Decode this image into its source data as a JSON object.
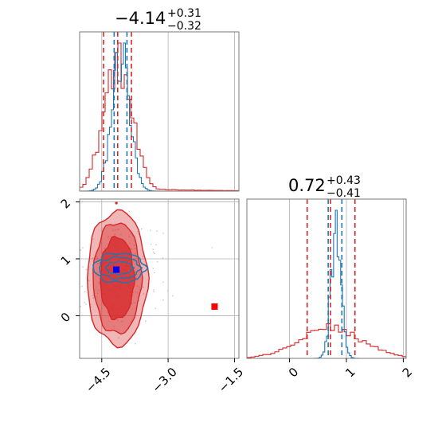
{
  "colors": {
    "red": "#d62728",
    "blue": "#1f77b4",
    "grid": "#b0b0b0",
    "truth_a": "#ff0000",
    "truth_b": "#0000ff"
  },
  "titles": {
    "param1": {
      "median": "−4.14",
      "plus": "+0.31",
      "minus": "−0.32"
    },
    "param2": {
      "median": "0.72",
      "plus": "+0.43",
      "minus": "−0.41"
    }
  },
  "chart_data": {
    "type": "corner",
    "panels": [
      "hist_param1",
      "scatter_param1_param2",
      "hist_param2"
    ],
    "param1": {
      "range": [
        -5.0,
        -1.4
      ],
      "ticks": [
        -4.5,
        -3.0,
        -1.5
      ],
      "tick_labels": [
        "−4.5",
        "−3.0",
        "−1.5"
      ],
      "median": -4.14,
      "err_plus": 0.31,
      "err_minus": 0.32,
      "red_quantiles": [
        -4.46,
        -4.14,
        -3.83
      ],
      "blue_quantiles": [
        -4.22,
        -3.93
      ]
    },
    "param2": {
      "range": [
        -0.75,
        2.05
      ],
      "ticks": [
        0,
        1,
        2
      ],
      "tick_labels": [
        "0",
        "1",
        "2"
      ],
      "median": 0.72,
      "err_plus": 0.43,
      "err_minus": 0.41,
      "red_quantiles": [
        0.31,
        0.72,
        1.15
      ],
      "blue_quantiles": [
        0.68,
        0.92
      ]
    },
    "truths": [
      {
        "param1": -1.95,
        "param2": 0.16,
        "color": "red"
      },
      {
        "param1": -4.17,
        "param2": 0.81,
        "color": "blue"
      }
    ],
    "grid": true
  }
}
